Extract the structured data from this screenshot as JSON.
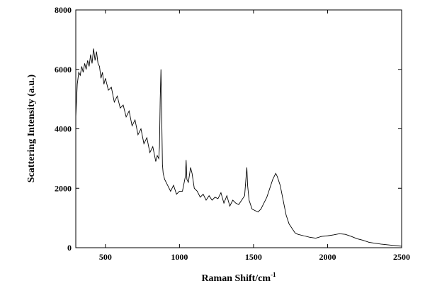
{
  "chart_data": {
    "type": "line",
    "xlabel": "Raman Shift/cm",
    "xlabel_sup": "-1",
    "ylabel": "Scattering Intensity (a.u.)",
    "xlim": [
      300,
      2500
    ],
    "xticks": [
      500,
      1000,
      1500,
      2000,
      2500
    ],
    "ylim": [
      0,
      8000
    ],
    "yticks": [
      0,
      2000,
      4000,
      6000,
      8000
    ],
    "series": [
      {
        "color": "#000000",
        "x": [
          300,
          310,
          320,
          330,
          340,
          350,
          360,
          370,
          380,
          390,
          400,
          410,
          420,
          430,
          440,
          450,
          460,
          470,
          480,
          490,
          500,
          520,
          540,
          560,
          580,
          600,
          620,
          640,
          660,
          680,
          700,
          720,
          740,
          760,
          780,
          800,
          820,
          840,
          850,
          860,
          865,
          870,
          875,
          880,
          885,
          890,
          900,
          920,
          940,
          960,
          980,
          1000,
          1020,
          1040,
          1045,
          1050,
          1060,
          1075,
          1085,
          1100,
          1120,
          1140,
          1160,
          1180,
          1200,
          1220,
          1240,
          1260,
          1280,
          1300,
          1320,
          1340,
          1360,
          1380,
          1400,
          1420,
          1440,
          1450,
          1455,
          1460,
          1470,
          1490,
          1510,
          1530,
          1550,
          1570,
          1590,
          1610,
          1630,
          1650,
          1660,
          1680,
          1700,
          1720,
          1740,
          1760,
          1780,
          1800,
          1840,
          1880,
          1920,
          1960,
          2000,
          2040,
          2080,
          2120,
          2160,
          2200,
          2240,
          2280,
          2320,
          2360,
          2400,
          2440,
          2480,
          2500
        ],
        "values": [
          4400,
          5500,
          5900,
          5800,
          6100,
          5900,
          6200,
          6000,
          6300,
          6100,
          6500,
          6200,
          6700,
          6300,
          6600,
          6200,
          6100,
          5700,
          5900,
          5500,
          5700,
          5300,
          5400,
          4900,
          5100,
          4700,
          4800,
          4400,
          4600,
          4100,
          4300,
          3800,
          4000,
          3500,
          3700,
          3200,
          3400,
          2900,
          3100,
          3000,
          3400,
          5000,
          6000,
          4500,
          2800,
          2500,
          2300,
          2100,
          1900,
          2100,
          1800,
          1900,
          1900,
          2400,
          2950,
          2300,
          2200,
          2700,
          2500,
          2000,
          1900,
          1700,
          1800,
          1600,
          1750,
          1600,
          1700,
          1650,
          1850,
          1500,
          1750,
          1400,
          1600,
          1500,
          1450,
          1600,
          1750,
          2400,
          2700,
          2100,
          1600,
          1300,
          1250,
          1200,
          1300,
          1500,
          1700,
          2000,
          2300,
          2500,
          2400,
          2100,
          1600,
          1100,
          800,
          650,
          500,
          450,
          400,
          350,
          320,
          380,
          400,
          430,
          470,
          450,
          380,
          300,
          250,
          180,
          150,
          120,
          100,
          80,
          60,
          50
        ]
      }
    ]
  }
}
